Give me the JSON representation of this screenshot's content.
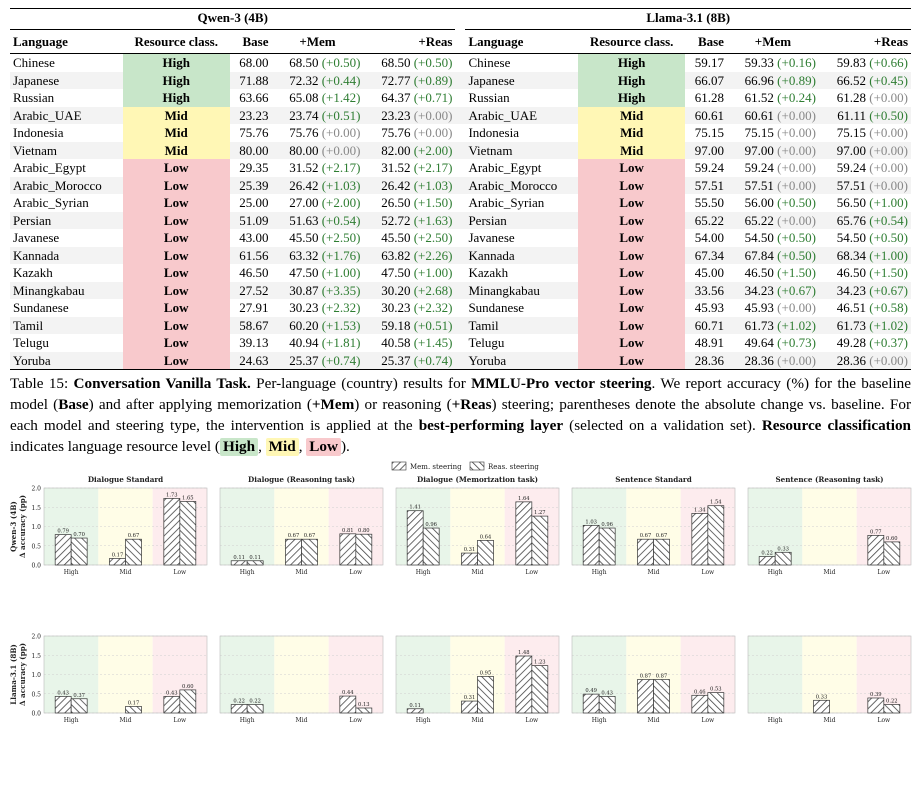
{
  "table": {
    "group_left": "Qwen-3 (4B)",
    "group_right": "Llama-3.1 (8B)",
    "headers": {
      "language": "Language",
      "resource": "Resource class.",
      "base": "Base",
      "mem": "+Mem",
      "reas": "+Reas"
    },
    "rows": [
      {
        "lang": "Chinese",
        "cls": "High",
        "q_base": "68.00",
        "q_mem": "68.50",
        "q_mem_d": "(+0.50)",
        "q_reas": "68.50",
        "q_reas_d": "(+0.50)",
        "l_base": "59.17",
        "l_mem": "59.33",
        "l_mem_d": "(+0.16)",
        "l_reas": "59.83",
        "l_reas_d": "(+0.66)"
      },
      {
        "lang": "Japanese",
        "cls": "High",
        "q_base": "71.88",
        "q_mem": "72.32",
        "q_mem_d": "(+0.44)",
        "q_reas": "72.77",
        "q_reas_d": "(+0.89)",
        "l_base": "66.07",
        "l_mem": "66.96",
        "l_mem_d": "(+0.89)",
        "l_reas": "66.52",
        "l_reas_d": "(+0.45)"
      },
      {
        "lang": "Russian",
        "cls": "High",
        "q_base": "63.66",
        "q_mem": "65.08",
        "q_mem_d": "(+1.42)",
        "q_reas": "64.37",
        "q_reas_d": "(+0.71)",
        "l_base": "61.28",
        "l_mem": "61.52",
        "l_mem_d": "(+0.24)",
        "l_reas": "61.28",
        "l_reas_d": "(+0.00)"
      },
      {
        "lang": "Arabic_UAE",
        "cls": "Mid",
        "q_base": "23.23",
        "q_mem": "23.74",
        "q_mem_d": "(+0.51)",
        "q_reas": "23.23",
        "q_reas_d": "(+0.00)",
        "l_base": "60.61",
        "l_mem": "60.61",
        "l_mem_d": "(+0.00)",
        "l_reas": "61.11",
        "l_reas_d": "(+0.50)"
      },
      {
        "lang": "Indonesia",
        "cls": "Mid",
        "q_base": "75.76",
        "q_mem": "75.76",
        "q_mem_d": "(+0.00)",
        "q_reas": "75.76",
        "q_reas_d": "(+0.00)",
        "l_base": "75.15",
        "l_mem": "75.15",
        "l_mem_d": "(+0.00)",
        "l_reas": "75.15",
        "l_reas_d": "(+0.00)"
      },
      {
        "lang": "Vietnam",
        "cls": "Mid",
        "q_base": "80.00",
        "q_mem": "80.00",
        "q_mem_d": "(+0.00)",
        "q_reas": "82.00",
        "q_reas_d": "(+2.00)",
        "l_base": "97.00",
        "l_mem": "97.00",
        "l_mem_d": "(+0.00)",
        "l_reas": "97.00",
        "l_reas_d": "(+0.00)"
      },
      {
        "lang": "Arabic_Egypt",
        "cls": "Low",
        "q_base": "29.35",
        "q_mem": "31.52",
        "q_mem_d": "(+2.17)",
        "q_reas": "31.52",
        "q_reas_d": "(+2.17)",
        "l_base": "59.24",
        "l_mem": "59.24",
        "l_mem_d": "(+0.00)",
        "l_reas": "59.24",
        "l_reas_d": "(+0.00)"
      },
      {
        "lang": "Arabic_Morocco",
        "cls": "Low",
        "q_base": "25.39",
        "q_mem": "26.42",
        "q_mem_d": "(+1.03)",
        "q_reas": "26.42",
        "q_reas_d": "(+1.03)",
        "l_base": "57.51",
        "l_mem": "57.51",
        "l_mem_d": "(+0.00)",
        "l_reas": "57.51",
        "l_reas_d": "(+0.00)"
      },
      {
        "lang": "Arabic_Syrian",
        "cls": "Low",
        "q_base": "25.00",
        "q_mem": "27.00",
        "q_mem_d": "(+2.00)",
        "q_reas": "26.50",
        "q_reas_d": "(+1.50)",
        "l_base": "55.50",
        "l_mem": "56.00",
        "l_mem_d": "(+0.50)",
        "l_reas": "56.50",
        "l_reas_d": "(+1.00)"
      },
      {
        "lang": "Persian",
        "cls": "Low",
        "q_base": "51.09",
        "q_mem": "51.63",
        "q_mem_d": "(+0.54)",
        "q_reas": "52.72",
        "q_reas_d": "(+1.63)",
        "l_base": "65.22",
        "l_mem": "65.22",
        "l_mem_d": "(+0.00)",
        "l_reas": "65.76",
        "l_reas_d": "(+0.54)"
      },
      {
        "lang": "Javanese",
        "cls": "Low",
        "q_base": "43.00",
        "q_mem": "45.50",
        "q_mem_d": "(+2.50)",
        "q_reas": "45.50",
        "q_reas_d": "(+2.50)",
        "l_base": "54.00",
        "l_mem": "54.50",
        "l_mem_d": "(+0.50)",
        "l_reas": "54.50",
        "l_reas_d": "(+0.50)"
      },
      {
        "lang": "Kannada",
        "cls": "Low",
        "q_base": "61.56",
        "q_mem": "63.32",
        "q_mem_d": "(+1.76)",
        "q_reas": "63.82",
        "q_reas_d": "(+2.26)",
        "l_base": "67.34",
        "l_mem": "67.84",
        "l_mem_d": "(+0.50)",
        "l_reas": "68.34",
        "l_reas_d": "(+1.00)"
      },
      {
        "lang": "Kazakh",
        "cls": "Low",
        "q_base": "46.50",
        "q_mem": "47.50",
        "q_mem_d": "(+1.00)",
        "q_reas": "47.50",
        "q_reas_d": "(+1.00)",
        "l_base": "45.00",
        "l_mem": "46.50",
        "l_mem_d": "(+1.50)",
        "l_reas": "46.50",
        "l_reas_d": "(+1.50)"
      },
      {
        "lang": "Minangkabau",
        "cls": "Low",
        "q_base": "27.52",
        "q_mem": "30.87",
        "q_mem_d": "(+3.35)",
        "q_reas": "30.20",
        "q_reas_d": "(+2.68)",
        "l_base": "33.56",
        "l_mem": "34.23",
        "l_mem_d": "(+0.67)",
        "l_reas": "34.23",
        "l_reas_d": "(+0.67)"
      },
      {
        "lang": "Sundanese",
        "cls": "Low",
        "q_base": "27.91",
        "q_mem": "30.23",
        "q_mem_d": "(+2.32)",
        "q_reas": "30.23",
        "q_reas_d": "(+2.32)",
        "l_base": "45.93",
        "l_mem": "45.93",
        "l_mem_d": "(+0.00)",
        "l_reas": "46.51",
        "l_reas_d": "(+0.58)"
      },
      {
        "lang": "Tamil",
        "cls": "Low",
        "q_base": "58.67",
        "q_mem": "60.20",
        "q_mem_d": "(+1.53)",
        "q_reas": "59.18",
        "q_reas_d": "(+0.51)",
        "l_base": "60.71",
        "l_mem": "61.73",
        "l_mem_d": "(+1.02)",
        "l_reas": "61.73",
        "l_reas_d": "(+1.02)"
      },
      {
        "lang": "Telugu",
        "cls": "Low",
        "q_base": "39.13",
        "q_mem": "40.94",
        "q_mem_d": "(+1.81)",
        "q_reas": "40.58",
        "q_reas_d": "(+1.45)",
        "l_base": "48.91",
        "l_mem": "49.64",
        "l_mem_d": "(+0.73)",
        "l_reas": "49.28",
        "l_reas_d": "(+0.37)"
      },
      {
        "lang": "Yoruba",
        "cls": "Low",
        "q_base": "24.63",
        "q_mem": "25.37",
        "q_mem_d": "(+0.74)",
        "q_reas": "25.37",
        "q_reas_d": "(+0.74)",
        "l_base": "28.36",
        "l_mem": "28.36",
        "l_mem_d": "(+0.00)",
        "l_reas": "28.36",
        "l_reas_d": "(+0.00)"
      }
    ]
  },
  "caption": {
    "label": "Table 15:",
    "title": "Conversation Vanilla Task.",
    "t1": " Per-language (country) results for ",
    "b1": "MMLU-Pro vector steering",
    "t2": ". We report accuracy (%) for the baseline model (",
    "b2": "Base",
    "t3": ") and after applying memorization (",
    "b3": "+Mem",
    "t4": ") or reasoning (",
    "b4": "+Reas",
    "t5": ") steering; parentheses denote the absolute change vs. baseline. For each model and steering type, the intervention is applied at the ",
    "b5": "best-performing layer",
    "t6": " (selected on a validation set). ",
    "b6": "Resource classification",
    "t7": " indicates language resource level (",
    "p1": "High",
    "sep": ", ",
    "p2": "Mid",
    "p3": "Low",
    "t8": ")."
  },
  "chart_data": {
    "type": "bar",
    "legend": {
      "mem": "Mem. steering",
      "reas": "Reas. steering",
      "placement": "top-center"
    },
    "categories": [
      "High",
      "Mid",
      "Low"
    ],
    "row_labels": [
      "Qwen-3 (4B)\nΔ accuracy (pp)",
      "Llama-3.1 (8B)\nΔ accuracy (pp)"
    ],
    "row_label_lines": [
      [
        "Qwen-3 (4B)",
        "Δ accuracy (pp)"
      ],
      [
        "Llama-3.1 (8B)",
        "Δ accuracy (pp)"
      ]
    ],
    "panel_titles": [
      "Dialogue Standard",
      "Dialogue (Reasoning task)",
      "Dialogue (Memorization task)",
      "Sentence Standard",
      "Sentence (Reasoning task)"
    ],
    "ylim": [
      0,
      2.0
    ],
    "yticks": [
      "0.0",
      "0.5",
      "1.0",
      "1.5",
      "2.0"
    ],
    "ytick_values": [
      0,
      0.5,
      1.0,
      1.5,
      2.0
    ],
    "background_colors": {
      "High": "#e8f5e9",
      "Mid": "#fffde7",
      "Low": "#fdecee"
    },
    "panels": [
      [
        {
          "mem": [
            0.79,
            0.17,
            1.73
          ],
          "reas": [
            0.7,
            0.67,
            1.65
          ],
          "mem_labels": [
            "0.79",
            "0.17",
            "1.73"
          ],
          "reas_labels": [
            "0.70",
            "0.67",
            "1.65"
          ]
        },
        {
          "mem": [
            0.11,
            0.67,
            0.81
          ],
          "reas": [
            0.11,
            0.67,
            0.8
          ],
          "mem_labels": [
            "0.11",
            "0.67",
            "0.81"
          ],
          "reas_labels": [
            "0.11",
            "0.67",
            "0.80"
          ]
        },
        {
          "mem": [
            1.41,
            0.31,
            1.64
          ],
          "reas": [
            0.96,
            0.64,
            1.27
          ],
          "mem_labels": [
            "1.41",
            "0.31",
            "1.64"
          ],
          "reas_labels": [
            "0.96",
            "0.64",
            "1.27"
          ]
        },
        {
          "mem": [
            1.03,
            0.67,
            1.34
          ],
          "reas": [
            0.96,
            0.67,
            1.54
          ],
          "mem_labels": [
            "1.03",
            "0.67",
            "1.34"
          ],
          "reas_labels": [
            "0.96",
            "0.67",
            "1.54"
          ]
        },
        {
          "mem": [
            0.22,
            0,
            0.77
          ],
          "reas": [
            0.33,
            0,
            0.6
          ],
          "mem_labels": [
            "0.22",
            "",
            "0.77"
          ],
          "reas_labels": [
            "0.33",
            "",
            "0.60"
          ]
        }
      ],
      [
        {
          "mem": [
            0.43,
            0,
            0.43
          ],
          "reas": [
            0.37,
            0.17,
            0.6
          ],
          "mem_labels": [
            "0.43",
            "",
            "0.43"
          ],
          "reas_labels": [
            "0.37",
            "0.17",
            "0.60"
          ]
        },
        {
          "mem": [
            0.22,
            0,
            0.44
          ],
          "reas": [
            0.22,
            0,
            0.13
          ],
          "mem_labels": [
            "0.22",
            "",
            "0.44"
          ],
          "reas_labels": [
            "0.22",
            "",
            "0.13"
          ]
        },
        {
          "mem": [
            0.11,
            0.31,
            1.48
          ],
          "reas": [
            0,
            0.95,
            1.23
          ],
          "mem_labels": [
            "0.11",
            "0.31",
            "1.48"
          ],
          "reas_labels": [
            "",
            "0.95",
            "1.23"
          ]
        },
        {
          "mem": [
            0.49,
            0.87,
            0.46
          ],
          "reas": [
            0.43,
            0.87,
            0.53
          ],
          "mem_labels": [
            "0.49",
            "0.87",
            "0.46"
          ],
          "reas_labels": [
            "0.43",
            "0.87",
            "0.53"
          ]
        },
        {
          "mem": [
            0,
            0.33,
            0.39
          ],
          "reas": [
            0,
            0,
            0.22
          ],
          "mem_labels": [
            "",
            "0.33",
            "0.39"
          ],
          "reas_labels": [
            "",
            "",
            "0.22"
          ]
        }
      ]
    ]
  },
  "colors": {
    "high": "#c8e6c9",
    "mid": "#fff7b5",
    "low": "#f8c9cc",
    "change_positive": "#2e7d32",
    "change_zero": "#888888"
  }
}
